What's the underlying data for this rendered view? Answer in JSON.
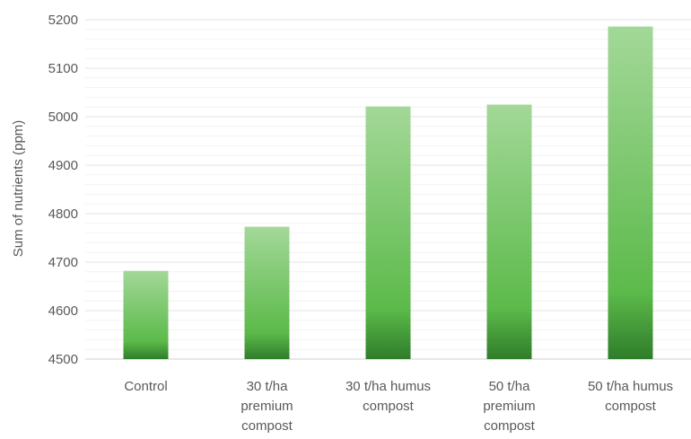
{
  "chart_data": {
    "type": "bar",
    "title": "",
    "xlabel": "",
    "ylabel": "Sum of nutrients (ppm)",
    "ylim": [
      4500,
      5200
    ],
    "yticks": [
      4500,
      4600,
      4700,
      4800,
      4900,
      5000,
      5100,
      5200
    ],
    "grid": true,
    "legend": "none",
    "categories": [
      [
        "Control"
      ],
      [
        "30 t/ha",
        "premium",
        "compost"
      ],
      [
        "30 t/ha humus",
        "compost"
      ],
      [
        "50 t/ha",
        "premium",
        "compost"
      ],
      [
        "50 t/ha humus",
        "compost"
      ]
    ],
    "values": [
      4682,
      4773,
      5021,
      5025,
      5186
    ],
    "colors": {
      "bar_top": "#a3d898",
      "bar_mid": "#5cba4a",
      "bar_bottom": "#2f7d2a",
      "grid": "#e3e3e3",
      "axis": "#d0d0d0"
    }
  }
}
